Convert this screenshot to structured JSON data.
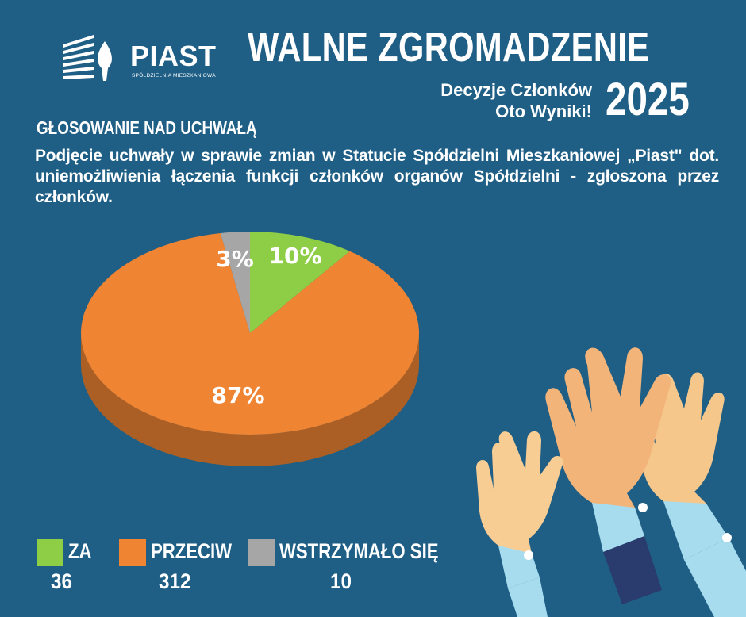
{
  "header": {
    "logo_text": "PIAST",
    "logo_sub": "SPÓŁDZIELNIA MIESZKANIOWA",
    "title": "WALNE ZGROMADZENIE",
    "subtitle_line1": "Decyzje Członków",
    "subtitle_line2": "Oto Wyniki!",
    "year": "2025"
  },
  "section": {
    "heading": "GŁOSOWANIE NAD UCHWAŁĄ",
    "resolution": "Podjęcie uchwały w sprawie zmian w Statucie Spółdzielni Mieszkaniowej „Piast\" dot. uniemożliwienia łączenia funkcji członków organów Spółdzielni - zgłoszona przez członków."
  },
  "colors": {
    "background": "#1f5f86",
    "za": "#8dce46",
    "przeciw": "#ef8433",
    "wstrzymalo": "#a6a6a6"
  },
  "chart_data": {
    "type": "pie",
    "categories": [
      "ZA",
      "PRZECIW",
      "WSTRZYMAŁO SIĘ"
    ],
    "values": [
      36,
      312,
      10
    ],
    "percent_labels": [
      "10%",
      "87%",
      "3%"
    ],
    "colors": [
      "#8dce46",
      "#ef8433",
      "#a6a6a6"
    ]
  },
  "legend": [
    {
      "label": "ZA",
      "value": "36"
    },
    {
      "label": "PRZECIW",
      "value": "312"
    },
    {
      "label": "WSTRZYMAŁO SIĘ",
      "value": "10"
    }
  ],
  "illustration": {
    "icon": "raised-hands-icon"
  }
}
